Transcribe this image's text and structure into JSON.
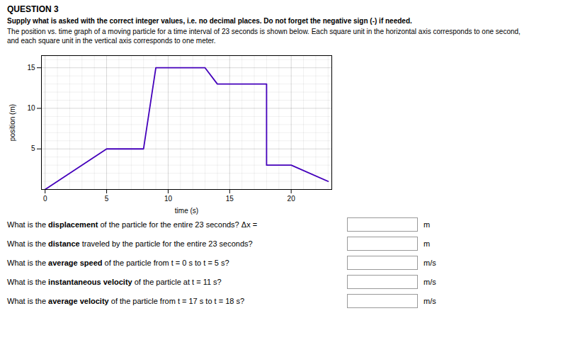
{
  "chart_data": {
    "type": "line",
    "title": "QUESTION 3",
    "subtitle": [
      "Supply what is asked with the correct integer values, i.e. no decimal places. Do not forget the negative sign (-) if needed.",
      "The position vs. time graph of a moving particle for a time interval of 23 seconds is shown below. Each square unit in the horizontal axis corresponds to one second,",
      "and each square unit in the vertical axis corresponds to one meter."
    ],
    "x": [
      0,
      5,
      8,
      9,
      13,
      14,
      18,
      18,
      20,
      23
    ],
    "values": [
      0,
      5,
      5,
      15,
      15,
      13,
      13,
      3,
      3,
      1
    ],
    "color": "#4400bb",
    "xlim": [
      -0.3,
      23.3
    ],
    "ylim": [
      0,
      16.5
    ],
    "xticks": [
      0,
      5,
      10,
      15,
      20
    ],
    "yticks": [
      5,
      10,
      15
    ],
    "xlabel": "time (s)",
    "ylabel": "position (m)",
    "grid": true,
    "annotations": [
      {
        "prefix": "What is the ",
        "bold": "displacement",
        "suffix": " of the particle for the entire 23 seconds? Δx =",
        "unit": "m"
      },
      {
        "prefix": "What is the ",
        "bold": "distance",
        "suffix": " traveled by the particle for the entire 23 seconds?",
        "unit": "m"
      },
      {
        "prefix": "What is the ",
        "bold": "average speed",
        "suffix": " of the particle from t = 0 s to t = 5 s?",
        "unit": "m/s"
      },
      {
        "prefix": "What is the ",
        "bold": "instantaneous velocity",
        "suffix": " of the particle at t = 11 s?",
        "unit": "m/s"
      },
      {
        "prefix": "What is the ",
        "bold": "average velocity",
        "suffix": " of the particle from t = 17 s to t = 18 s?",
        "unit": "m/s"
      }
    ]
  }
}
